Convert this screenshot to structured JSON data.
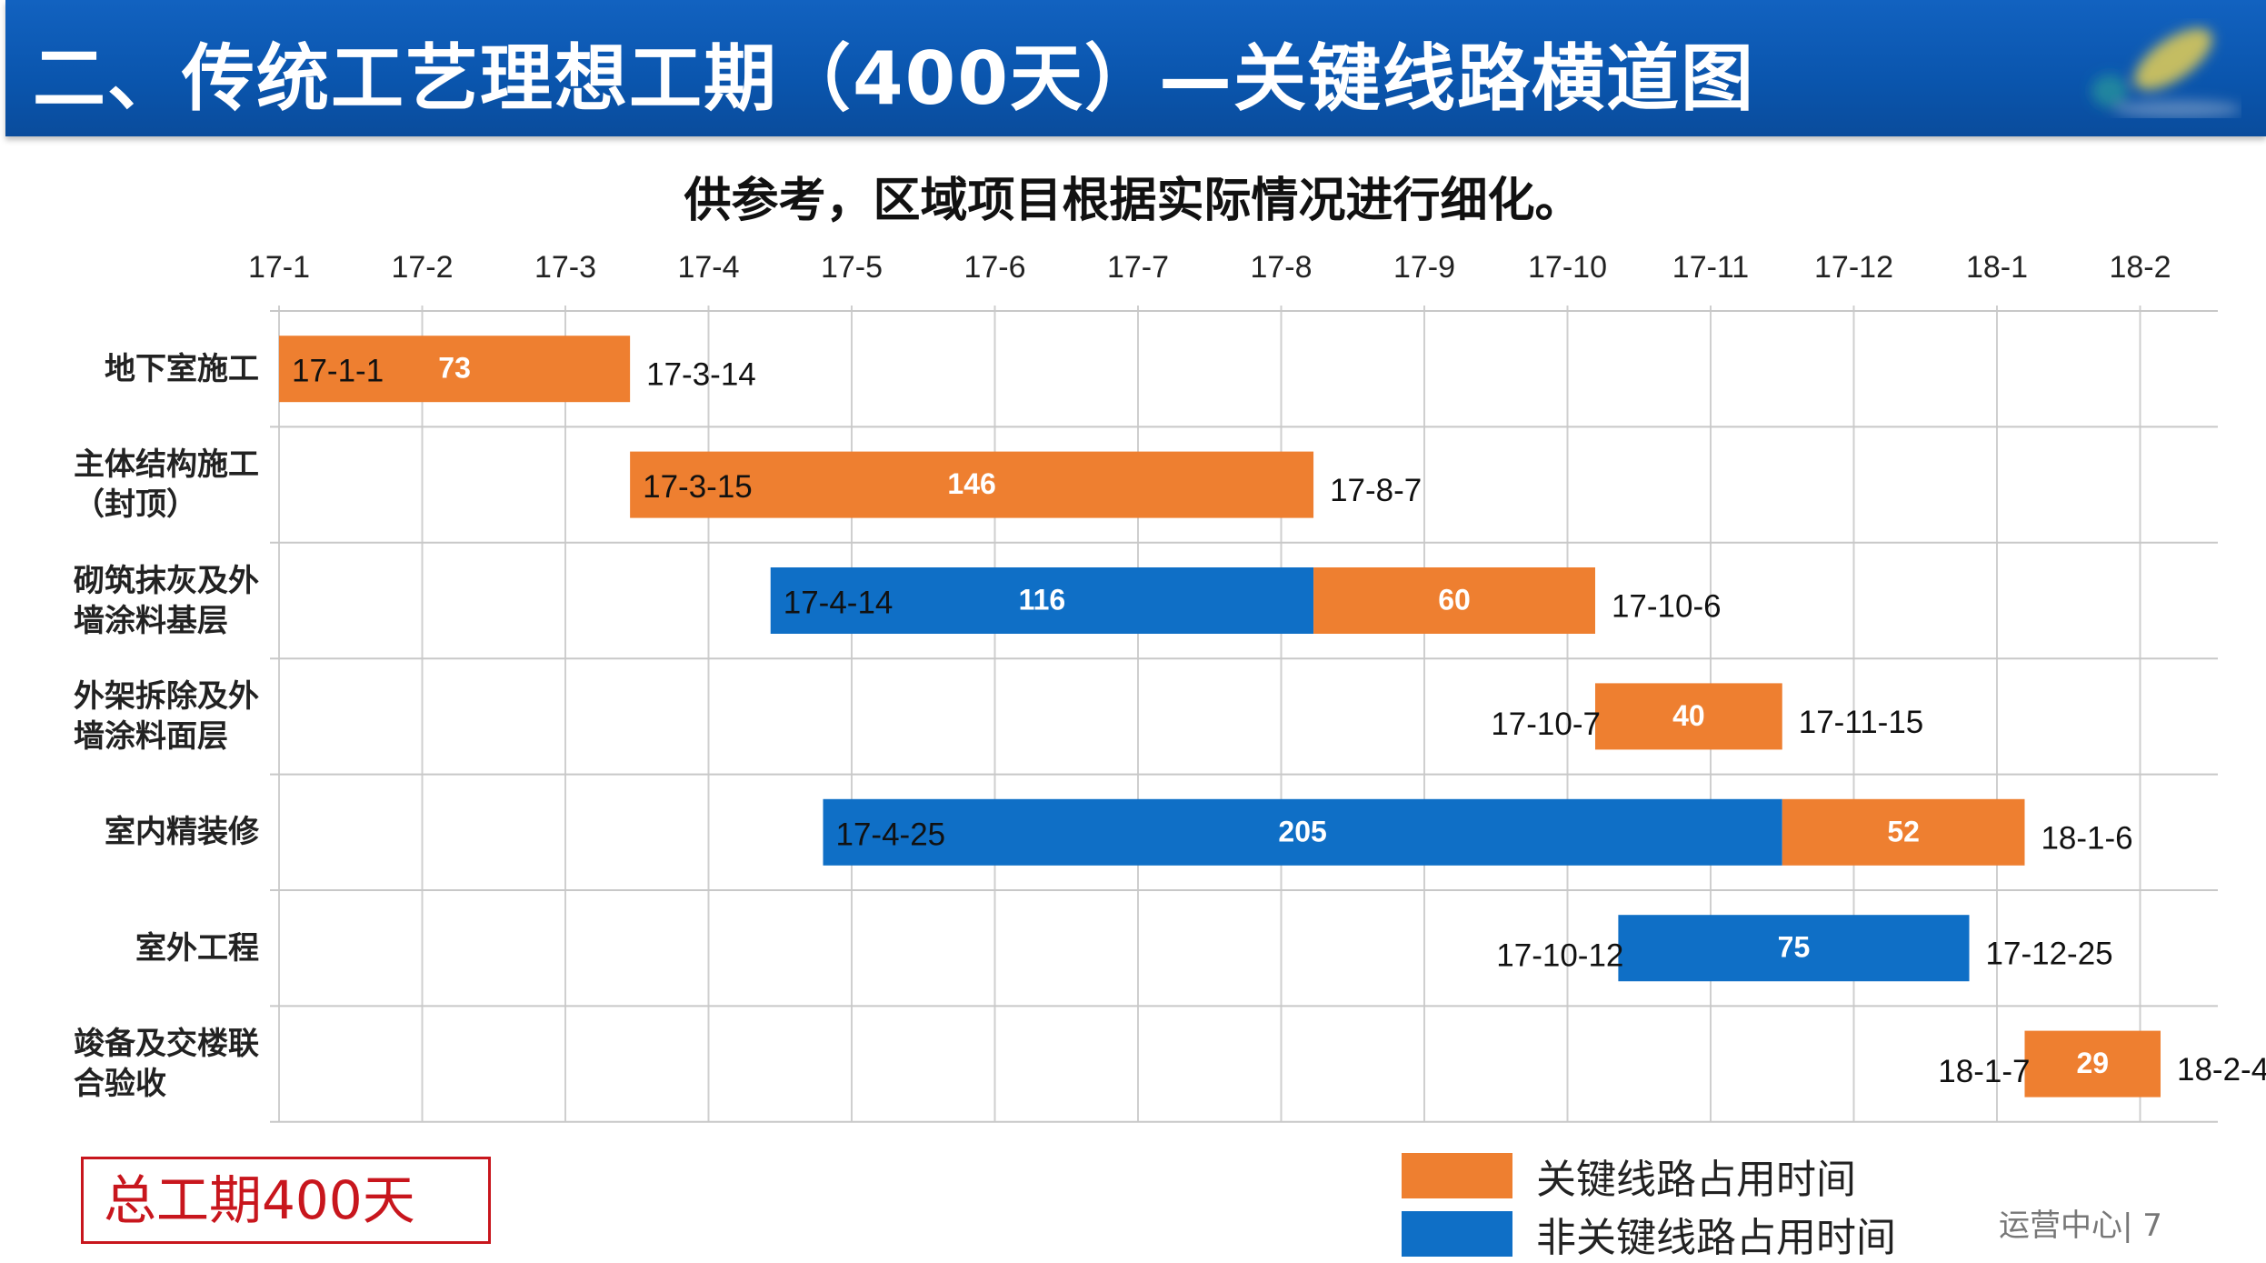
{
  "header": {
    "title": "二、传统工艺理想工期（400天）—关键线路横道图"
  },
  "subtitle": "供参考，区域项目根据实际情况进行细化。",
  "colors": {
    "critical": "#ee7f30",
    "noncritical": "#0f6fc6",
    "title_bar": "#0a55ad",
    "total_box": "#c8161d"
  },
  "chart_data": {
    "type": "gantt-bar",
    "x_ticks": [
      "17-1",
      "17-2",
      "17-3",
      "17-4",
      "17-5",
      "17-6",
      "17-7",
      "17-8",
      "17-9",
      "17-10",
      "17-11",
      "17-12",
      "18-1",
      "18-2"
    ],
    "grid": true,
    "rows": [
      {
        "label": [
          "地下室施工"
        ],
        "start": "17-1-1",
        "end": "17-3-14",
        "start_label_inside": true,
        "segments": [
          {
            "type": "critical",
            "days": 73
          }
        ]
      },
      {
        "label": [
          "主体结构施工",
          "（封顶）"
        ],
        "start": "17-3-15",
        "end": "17-8-7",
        "start_label_inside": true,
        "segments": [
          {
            "type": "critical",
            "days": 146
          }
        ]
      },
      {
        "label": [
          "砌筑抹灰及外",
          "墙涂料基层"
        ],
        "start": "17-4-14",
        "end": "17-10-6",
        "start_label_inside": true,
        "segments": [
          {
            "type": "noncritical",
            "days": 116
          },
          {
            "type": "critical",
            "days": 60
          }
        ]
      },
      {
        "label": [
          "外架拆除及外",
          "墙涂料面层"
        ],
        "start": "17-10-7",
        "end": "17-11-15",
        "start_label_inside": false,
        "segments": [
          {
            "type": "critical",
            "days": 40
          }
        ]
      },
      {
        "label": [
          "室内精装修"
        ],
        "start": "17-4-25",
        "end": "18-1-6",
        "start_label_inside": true,
        "segments": [
          {
            "type": "noncritical",
            "days": 205
          },
          {
            "type": "critical",
            "days": 52
          }
        ]
      },
      {
        "label": [
          "室外工程"
        ],
        "start": "17-10-12",
        "end": "17-12-25",
        "start_label_inside": false,
        "segments": [
          {
            "type": "noncritical",
            "days": 75
          }
        ]
      },
      {
        "label": [
          "竣备及交楼联",
          "合验收"
        ],
        "start": "18-1-7",
        "end": "18-2-4",
        "start_label_inside": false,
        "segments": [
          {
            "type": "critical",
            "days": 29
          }
        ]
      }
    ],
    "legend": [
      {
        "type": "critical",
        "label": "关键线路占用时间"
      },
      {
        "type": "noncritical",
        "label": "非关键线路占用时间"
      }
    ],
    "legend_placement": "bottom-right"
  },
  "total": "总工期400天",
  "footer": "运营中心| 7"
}
